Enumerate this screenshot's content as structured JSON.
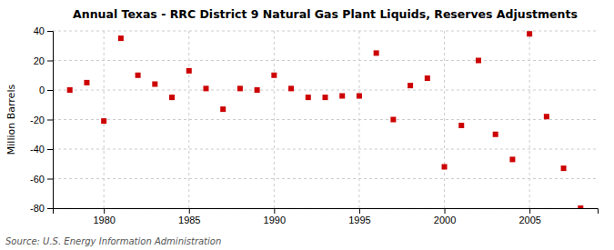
{
  "chart_data": {
    "type": "scatter",
    "title": "Annual Texas - RRC District 9 Natural Gas Plant Liquids, Reserves Adjustments",
    "ylabel": "Million Barrels",
    "source": "Source: U.S. Energy Information Administration",
    "x": [
      1978,
      1979,
      1980,
      1981,
      1982,
      1983,
      1984,
      1985,
      1986,
      1987,
      1988,
      1989,
      1990,
      1991,
      1992,
      1993,
      1994,
      1995,
      1996,
      1997,
      1998,
      1999,
      2000,
      2001,
      2002,
      2003,
      2004,
      2005,
      2006,
      2007,
      2008
    ],
    "values": [
      0,
      5,
      -21,
      35,
      10,
      4,
      -5,
      13,
      1,
      -13,
      1,
      0,
      10,
      1,
      -5,
      -5,
      -4,
      -4,
      25,
      -20,
      3,
      8,
      -52,
      -24,
      20,
      -30,
      -47,
      38,
      -18,
      -53,
      -80
    ],
    "color": "#cc0000",
    "marker": "square",
    "xlim": [
      1977,
      2009
    ],
    "ylim": [
      -80,
      40
    ],
    "xticks": [
      1980,
      1985,
      1990,
      1995,
      2000,
      2005
    ],
    "yticks": [
      -80,
      -60,
      -40,
      -20,
      0,
      20,
      40
    ],
    "grid": true
  }
}
